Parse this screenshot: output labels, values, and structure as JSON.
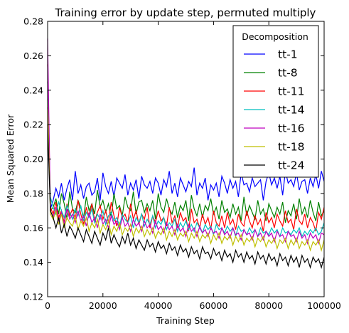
{
  "chart_data": {
    "type": "line",
    "title": "Training error by update step, permuted multiply",
    "xlabel": "Training Step",
    "ylabel": "Mean Squared Error",
    "xlim": [
      0,
      100000
    ],
    "ylim": [
      0.12,
      0.28
    ],
    "x_ticks": [
      0,
      20000,
      40000,
      60000,
      80000,
      100000
    ],
    "y_ticks": [
      0.12,
      0.14,
      0.16,
      0.18,
      0.2,
      0.22,
      0.24,
      0.26,
      0.28
    ],
    "x_tick_labels": [
      "0",
      "20000",
      "40000",
      "60000",
      "80000",
      "100000"
    ],
    "y_tick_labels": [
      "0.12",
      "0.14",
      "0.16",
      "0.18",
      "0.20",
      "0.22",
      "0.24",
      "0.26",
      "0.28"
    ],
    "grid": false,
    "legend": {
      "title": "Decomposition",
      "placement": "top-right"
    },
    "x_step": 1000,
    "series": [
      {
        "name": "tt-1",
        "color": "#0000ff",
        "values": [
          0.23,
          0.171,
          0.176,
          0.183,
          0.178,
          0.186,
          0.176,
          0.183,
          0.188,
          0.176,
          0.193,
          0.18,
          0.185,
          0.177,
          0.184,
          0.186,
          0.179,
          0.181,
          0.189,
          0.176,
          0.192,
          0.184,
          0.18,
          0.187,
          0.178,
          0.189,
          0.186,
          0.183,
          0.191,
          0.179,
          0.186,
          0.182,
          0.188,
          0.177,
          0.19,
          0.185,
          0.183,
          0.187,
          0.18,
          0.189,
          0.186,
          0.179,
          0.188,
          0.184,
          0.193,
          0.18,
          0.186,
          0.178,
          0.189,
          0.185,
          0.181,
          0.187,
          0.184,
          0.195,
          0.179,
          0.186,
          0.183,
          0.189,
          0.176,
          0.185,
          0.182,
          0.186,
          0.178,
          0.19,
          0.186,
          0.18,
          0.188,
          0.183,
          0.187,
          0.178,
          0.192,
          0.185,
          0.186,
          0.181,
          0.189,
          0.184,
          0.186,
          0.188,
          0.176,
          0.187,
          0.192,
          0.185,
          0.189,
          0.183,
          0.19,
          0.179,
          0.193,
          0.186,
          0.188,
          0.184,
          0.192,
          0.182,
          0.187,
          0.188,
          0.18,
          0.189,
          0.184,
          0.191,
          0.183,
          0.193,
          0.187
        ]
      },
      {
        "name": "tt-8",
        "color": "#008000",
        "values": [
          0.245,
          0.17,
          0.172,
          0.177,
          0.168,
          0.18,
          0.174,
          0.165,
          0.181,
          0.171,
          0.169,
          0.176,
          0.172,
          0.166,
          0.178,
          0.17,
          0.174,
          0.168,
          0.182,
          0.172,
          0.176,
          0.169,
          0.174,
          0.166,
          0.18,
          0.171,
          0.173,
          0.167,
          0.178,
          0.172,
          0.17,
          0.181,
          0.168,
          0.175,
          0.176,
          0.169,
          0.174,
          0.17,
          0.176,
          0.165,
          0.18,
          0.172,
          0.169,
          0.177,
          0.171,
          0.168,
          0.175,
          0.166,
          0.173,
          0.17,
          0.176,
          0.164,
          0.179,
          0.171,
          0.167,
          0.174,
          0.166,
          0.173,
          0.17,
          0.177,
          0.168,
          0.172,
          0.165,
          0.176,
          0.169,
          0.171,
          0.166,
          0.174,
          0.168,
          0.172,
          0.164,
          0.178,
          0.167,
          0.173,
          0.169,
          0.165,
          0.176,
          0.168,
          0.171,
          0.164,
          0.174,
          0.17,
          0.166,
          0.172,
          0.168,
          0.175,
          0.163,
          0.17,
          0.167,
          0.174,
          0.165,
          0.177,
          0.168,
          0.172,
          0.166,
          0.176,
          0.169,
          0.164,
          0.175,
          0.167,
          0.17
        ]
      },
      {
        "name": "tt-11",
        "color": "#ff0000",
        "values": [
          0.255,
          0.172,
          0.168,
          0.175,
          0.166,
          0.17,
          0.163,
          0.174,
          0.167,
          0.171,
          0.165,
          0.176,
          0.168,
          0.162,
          0.172,
          0.166,
          0.174,
          0.164,
          0.169,
          0.173,
          0.165,
          0.17,
          0.163,
          0.175,
          0.167,
          0.161,
          0.172,
          0.166,
          0.168,
          0.163,
          0.174,
          0.165,
          0.17,
          0.162,
          0.168,
          0.165,
          0.172,
          0.16,
          0.167,
          0.163,
          0.17,
          0.164,
          0.166,
          0.161,
          0.172,
          0.163,
          0.167,
          0.16,
          0.169,
          0.164,
          0.166,
          0.158,
          0.171,
          0.163,
          0.165,
          0.16,
          0.168,
          0.162,
          0.166,
          0.159,
          0.17,
          0.163,
          0.161,
          0.167,
          0.16,
          0.169,
          0.162,
          0.165,
          0.159,
          0.168,
          0.163,
          0.161,
          0.17,
          0.164,
          0.16,
          0.167,
          0.162,
          0.165,
          0.158,
          0.169,
          0.163,
          0.166,
          0.16,
          0.168,
          0.164,
          0.161,
          0.17,
          0.163,
          0.165,
          0.159,
          0.171,
          0.164,
          0.162,
          0.168,
          0.16,
          0.166,
          0.163,
          0.158,
          0.169,
          0.165,
          0.172
        ]
      },
      {
        "name": "tt-14",
        "color": "#00bfbf",
        "values": [
          0.24,
          0.178,
          0.172,
          0.168,
          0.175,
          0.17,
          0.166,
          0.173,
          0.169,
          0.165,
          0.171,
          0.167,
          0.173,
          0.164,
          0.169,
          0.166,
          0.171,
          0.163,
          0.168,
          0.165,
          0.17,
          0.162,
          0.167,
          0.169,
          0.164,
          0.166,
          0.161,
          0.168,
          0.165,
          0.163,
          0.167,
          0.16,
          0.166,
          0.163,
          0.168,
          0.161,
          0.165,
          0.162,
          0.167,
          0.16,
          0.164,
          0.162,
          0.166,
          0.159,
          0.163,
          0.161,
          0.165,
          0.158,
          0.163,
          0.16,
          0.164,
          0.159,
          0.162,
          0.158,
          0.163,
          0.16,
          0.157,
          0.162,
          0.159,
          0.161,
          0.156,
          0.162,
          0.159,
          0.16,
          0.157,
          0.161,
          0.158,
          0.16,
          0.155,
          0.161,
          0.158,
          0.159,
          0.156,
          0.16,
          0.157,
          0.159,
          0.155,
          0.16,
          0.157,
          0.158,
          0.156,
          0.16,
          0.157,
          0.159,
          0.155,
          0.16,
          0.157,
          0.158,
          0.156,
          0.159,
          0.157,
          0.16,
          0.155,
          0.158,
          0.156,
          0.159,
          0.157,
          0.16,
          0.156,
          0.158,
          0.163
        ]
      },
      {
        "name": "tt-16",
        "color": "#bf00bf",
        "values": [
          0.27,
          0.17,
          0.166,
          0.172,
          0.164,
          0.169,
          0.162,
          0.171,
          0.165,
          0.168,
          0.163,
          0.17,
          0.164,
          0.167,
          0.161,
          0.169,
          0.163,
          0.166,
          0.16,
          0.168,
          0.162,
          0.165,
          0.16,
          0.167,
          0.162,
          0.164,
          0.159,
          0.166,
          0.161,
          0.163,
          0.158,
          0.165,
          0.161,
          0.163,
          0.158,
          0.164,
          0.16,
          0.162,
          0.157,
          0.164,
          0.159,
          0.161,
          0.157,
          0.163,
          0.159,
          0.161,
          0.156,
          0.162,
          0.158,
          0.16,
          0.155,
          0.162,
          0.158,
          0.16,
          0.155,
          0.161,
          0.157,
          0.159,
          0.155,
          0.16,
          0.157,
          0.158,
          0.154,
          0.16,
          0.156,
          0.158,
          0.154,
          0.16,
          0.156,
          0.157,
          0.153,
          0.159,
          0.156,
          0.157,
          0.153,
          0.159,
          0.155,
          0.157,
          0.153,
          0.158,
          0.155,
          0.157,
          0.152,
          0.158,
          0.155,
          0.156,
          0.152,
          0.158,
          0.155,
          0.156,
          0.152,
          0.158,
          0.154,
          0.156,
          0.151,
          0.157,
          0.154,
          0.156,
          0.151,
          0.157,
          0.156
        ]
      },
      {
        "name": "tt-18",
        "color": "#bfbf00",
        "values": [
          0.235,
          0.168,
          0.165,
          0.17,
          0.162,
          0.168,
          0.16,
          0.166,
          0.163,
          0.161,
          0.167,
          0.159,
          0.164,
          0.161,
          0.166,
          0.158,
          0.163,
          0.16,
          0.165,
          0.157,
          0.162,
          0.159,
          0.164,
          0.156,
          0.161,
          0.158,
          0.163,
          0.156,
          0.16,
          0.158,
          0.162,
          0.155,
          0.16,
          0.157,
          0.161,
          0.155,
          0.159,
          0.156,
          0.16,
          0.154,
          0.158,
          0.156,
          0.16,
          0.153,
          0.158,
          0.155,
          0.159,
          0.153,
          0.157,
          0.155,
          0.158,
          0.152,
          0.157,
          0.154,
          0.158,
          0.152,
          0.156,
          0.154,
          0.157,
          0.151,
          0.156,
          0.153,
          0.157,
          0.151,
          0.155,
          0.153,
          0.156,
          0.15,
          0.155,
          0.152,
          0.156,
          0.15,
          0.154,
          0.152,
          0.155,
          0.149,
          0.154,
          0.152,
          0.155,
          0.149,
          0.153,
          0.151,
          0.154,
          0.148,
          0.153,
          0.151,
          0.154,
          0.148,
          0.153,
          0.15,
          0.154,
          0.148,
          0.152,
          0.15,
          0.153,
          0.147,
          0.152,
          0.15,
          0.153,
          0.147,
          0.153
        ]
      },
      {
        "name": "tt-24",
        "color": "#000000",
        "values": [
          0.22,
          0.17,
          0.166,
          0.16,
          0.166,
          0.157,
          0.162,
          0.155,
          0.161,
          0.158,
          0.154,
          0.16,
          0.156,
          0.152,
          0.159,
          0.155,
          0.151,
          0.158,
          0.154,
          0.15,
          0.157,
          0.153,
          0.16,
          0.151,
          0.156,
          0.152,
          0.149,
          0.155,
          0.151,
          0.157,
          0.15,
          0.154,
          0.148,
          0.153,
          0.15,
          0.147,
          0.153,
          0.149,
          0.151,
          0.146,
          0.152,
          0.148,
          0.15,
          0.145,
          0.151,
          0.147,
          0.149,
          0.144,
          0.15,
          0.146,
          0.148,
          0.143,
          0.149,
          0.145,
          0.147,
          0.142,
          0.149,
          0.145,
          0.146,
          0.142,
          0.148,
          0.144,
          0.146,
          0.141,
          0.147,
          0.143,
          0.145,
          0.14,
          0.147,
          0.143,
          0.145,
          0.14,
          0.146,
          0.142,
          0.144,
          0.139,
          0.146,
          0.142,
          0.144,
          0.139,
          0.145,
          0.141,
          0.143,
          0.138,
          0.145,
          0.141,
          0.143,
          0.138,
          0.144,
          0.14,
          0.143,
          0.137,
          0.144,
          0.14,
          0.142,
          0.137,
          0.143,
          0.14,
          0.142,
          0.137,
          0.143
        ]
      }
    ]
  }
}
